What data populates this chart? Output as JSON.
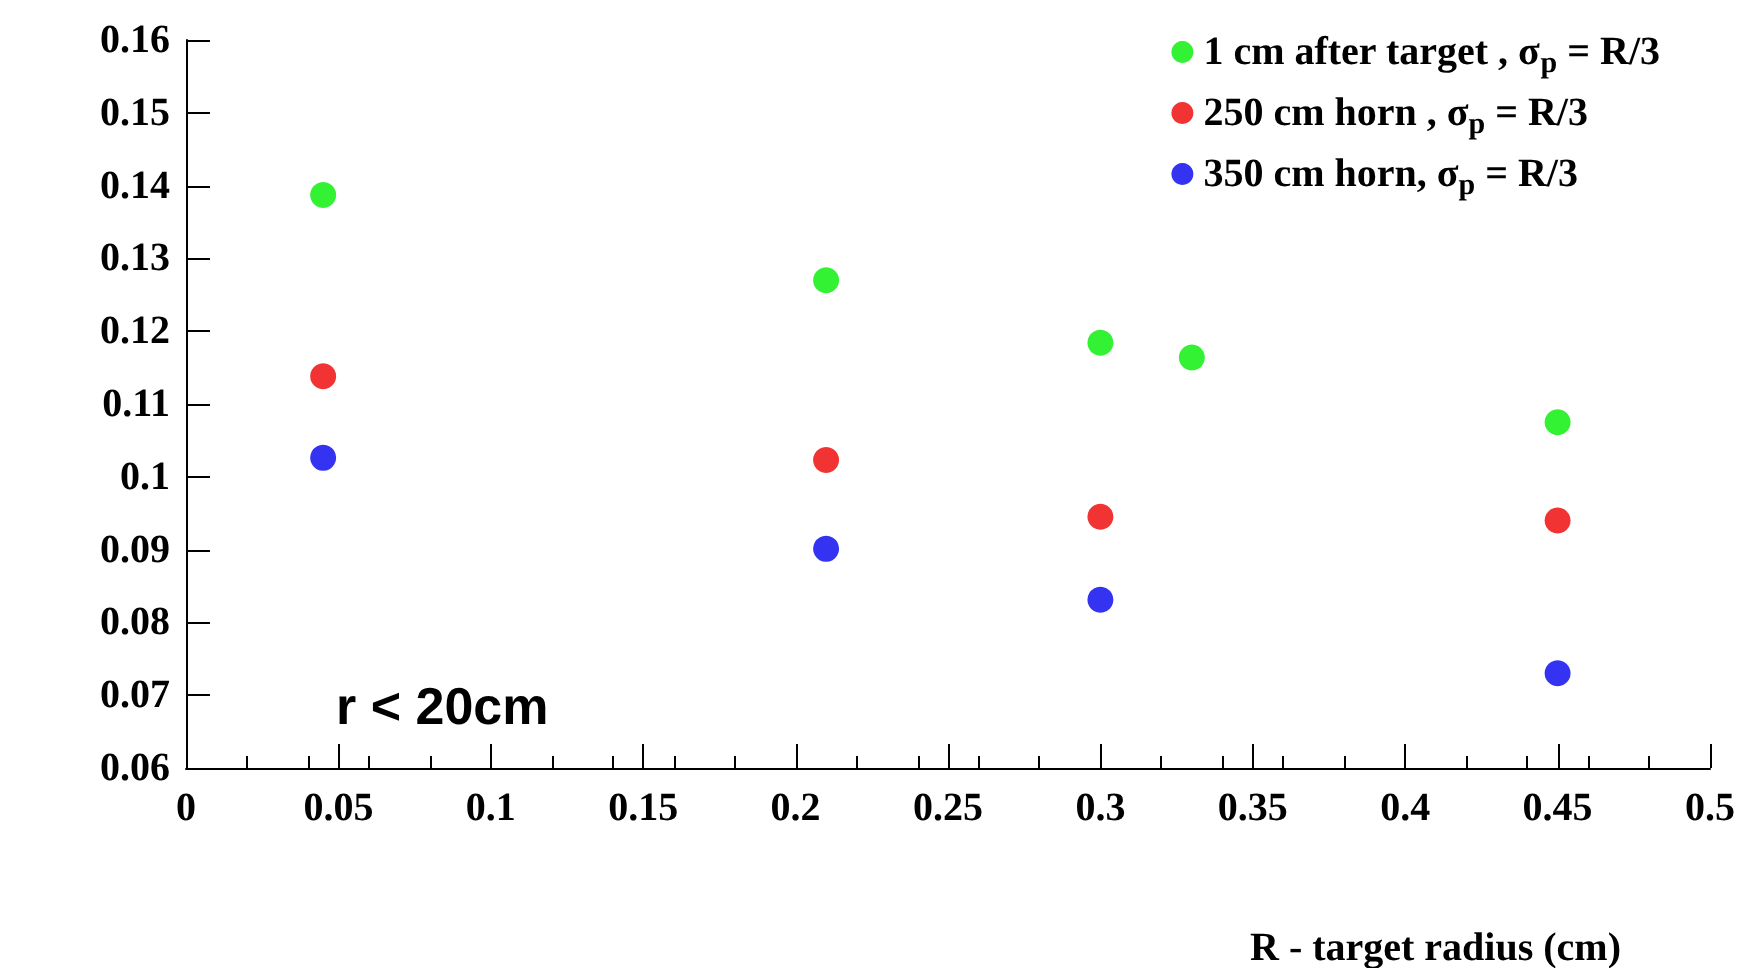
{
  "chart_data": {
    "type": "scatter",
    "xlabel": "R - target radius (cm)",
    "annotations": [
      "r < 20cm"
    ],
    "xlim": [
      0,
      0.5
    ],
    "xticks": [
      0,
      0.05,
      0.1,
      0.15,
      0.2,
      0.25,
      0.3,
      0.35,
      0.4,
      0.45,
      0.5
    ],
    "ylim": [
      0.06,
      0.16
    ],
    "yticks": [
      0.06,
      0.07,
      0.08,
      0.09,
      0.1,
      0.11,
      0.12,
      0.13,
      0.14,
      0.15,
      0.16
    ],
    "grid": false,
    "legend": "top right",
    "marker": "circle",
    "series": [
      {
        "name": "1 cm after target , σ$_{p}$ = R/3",
        "color": "#00ee00",
        "x": [
          0.045,
          0.21,
          0.3,
          0.33,
          0.45
        ],
        "values": [
          0.1387,
          0.127,
          0.1184,
          0.1164,
          0.1075
        ]
      },
      {
        "name": "250 cm horn , σ$_{p}$ = R/3",
        "color": "#ee0000",
        "x": [
          0.045,
          0.21,
          0.3,
          0.45
        ],
        "values": [
          0.1138,
          0.1023,
          0.0945,
          0.094
        ]
      },
      {
        "name": "350 cm horn, σ$_{p}$ = R/3",
        "color": "#0000ee",
        "x": [
          0.045,
          0.21,
          0.3,
          0.45
        ],
        "values": [
          0.1026,
          0.0901,
          0.0831,
          0.073
        ]
      }
    ]
  }
}
